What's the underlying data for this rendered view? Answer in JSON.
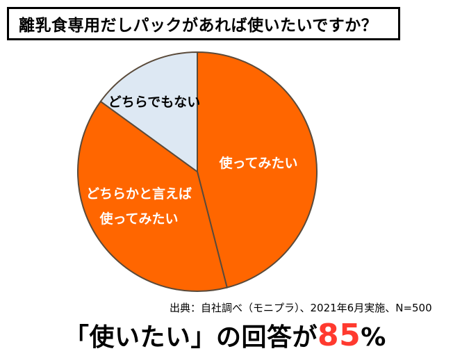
{
  "title": "離乳食専用だしパックがあれば使いたいですか？",
  "source": "出典：自社調べ（モニプラ）、2021年6月実施、N=500",
  "summary": {
    "prefix": "「使いたい」の回答が",
    "value": "85",
    "unit": "%"
  },
  "colors": {
    "use": "#ff6600",
    "somewhat": "#ff6600",
    "neither": "#dde8f3",
    "edge": "#5a4a3a",
    "highlight": "#ff3a2f"
  },
  "chart_data": {
    "type": "pie",
    "title": "離乳食専用だしパックがあれば使いたいですか？",
    "slices": [
      {
        "label": [
          "使ってみたい"
        ],
        "value": 46,
        "color": "#ff6600",
        "text_color": "#ffffff"
      },
      {
        "label": [
          "どちらかと言えば",
          "使ってみたい"
        ],
        "value": 39,
        "color": "#ff6600",
        "text_color": "#ffffff"
      },
      {
        "label": [
          "どちらでもない"
        ],
        "value": 15,
        "color": "#dde8f3",
        "text_color": "#000000"
      }
    ]
  }
}
